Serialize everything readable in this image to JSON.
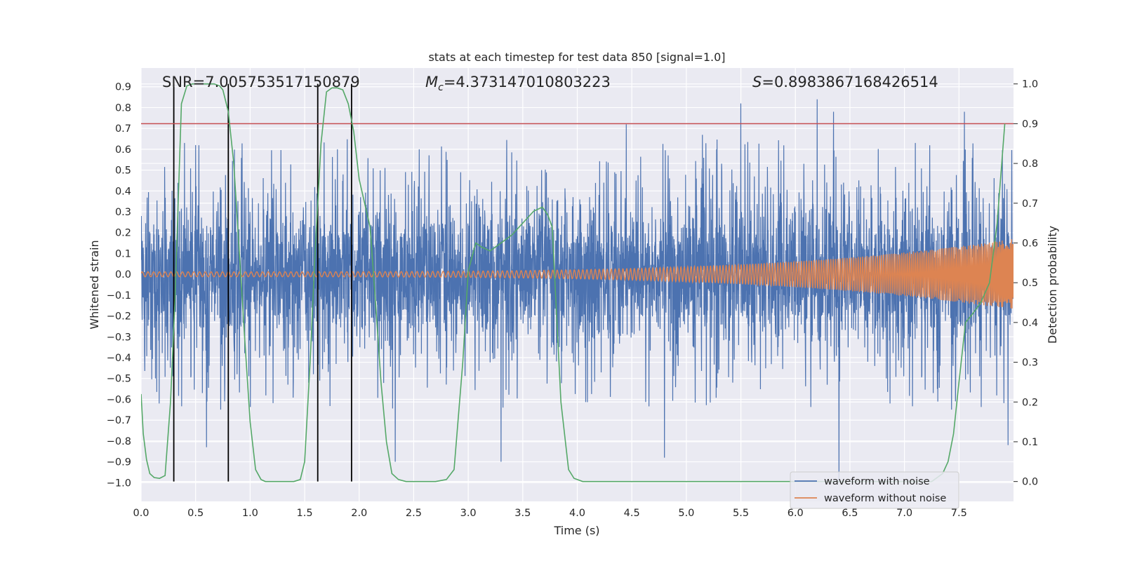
{
  "chart_data": {
    "type": "line",
    "title": "stats at each timestep for test data 850 [signal=1.0]",
    "xlabel": "Time (s)",
    "ylabel": "Whitened strain",
    "y2label": "Detection probability",
    "xlim": [
      0.0,
      8.0
    ],
    "ylim": [
      -1.09,
      0.99
    ],
    "y2lim": [
      -0.05,
      1.04
    ],
    "xticks": [
      0.0,
      0.5,
      1.0,
      1.5,
      2.0,
      2.5,
      3.0,
      3.5,
      4.0,
      4.5,
      5.0,
      5.5,
      6.0,
      6.5,
      7.0,
      7.5
    ],
    "xtick_labels": [
      "0.0",
      "0.5",
      "1.0",
      "1.5",
      "2.0",
      "2.5",
      "3.0",
      "3.5",
      "4.0",
      "4.5",
      "5.0",
      "5.5",
      "6.0",
      "6.5",
      "7.0",
      "7.5"
    ],
    "yticks": [
      0.9,
      0.8,
      0.7,
      0.6,
      0.5,
      0.4,
      0.3,
      0.2,
      0.1,
      0.0,
      -0.1,
      -0.2,
      -0.3,
      -0.4,
      -0.5,
      -0.6,
      -0.7,
      -0.8,
      -0.9,
      -1.0
    ],
    "ytick_labels": [
      "0.9",
      "0.8",
      "0.7",
      "0.6",
      "0.5",
      "0.4",
      "0.3",
      "0.2",
      "0.1",
      "0.0",
      "−0.1",
      "−0.2",
      "−0.3",
      "−0.4",
      "−0.5",
      "−0.6",
      "−0.7",
      "−0.8",
      "−0.9",
      "−1.0"
    ],
    "y2ticks": [
      1.0,
      0.9,
      0.8,
      0.7,
      0.6,
      0.5,
      0.4,
      0.3,
      0.2,
      0.1,
      0.0
    ],
    "y2tick_labels": [
      "1.0",
      "0.9",
      "0.8",
      "0.7",
      "0.6",
      "0.5",
      "0.4",
      "0.3",
      "0.2",
      "0.1",
      "0.0"
    ],
    "grid": true,
    "legend_position": "bottom-right",
    "annotations": {
      "snr": "SNR=7.005753517150879",
      "mc_symbol": "M",
      "mc_sub": "c",
      "mc_value": "=4.373147010803223",
      "s_symbol": "S",
      "s_value": "=0.8983867168426514"
    },
    "threshold": {
      "y2": 0.9,
      "color": "#c44e52"
    },
    "vlines_x": [
      0.3,
      0.8,
      1.62,
      1.93
    ],
    "series": [
      {
        "name": "waveform with noise",
        "color": "#4c72b0",
        "axis": "left",
        "style": "noise",
        "t_range": [
          0.0,
          8.0
        ],
        "envelope": 0.35,
        "min": -1.0,
        "max": 0.84,
        "peaks": [
          {
            "x": 0.5,
            "y": 0.62
          },
          {
            "x": 1.8,
            "y": 0.6
          },
          {
            "x": 2.55,
            "y": 0.6
          },
          {
            "x": 4.45,
            "y": 0.72
          },
          {
            "x": 5.5,
            "y": 0.82
          },
          {
            "x": 6.2,
            "y": 0.84
          },
          {
            "x": 6.35,
            "y": 0.78
          },
          {
            "x": 7.55,
            "y": 0.78
          },
          {
            "x": 7.95,
            "y": 0.7
          },
          {
            "x": 0.6,
            "y": -0.83
          },
          {
            "x": 2.33,
            "y": -0.9
          },
          {
            "x": 3.3,
            "y": -0.9
          },
          {
            "x": 4.8,
            "y": -0.88
          },
          {
            "x": 6.4,
            "y": -1.0
          },
          {
            "x": 7.95,
            "y": -0.82
          }
        ]
      },
      {
        "name": "waveform without noise",
        "color": "#dd8452",
        "axis": "left",
        "style": "chirp",
        "t_range": [
          0.0,
          8.0
        ],
        "amplitude_start": 0.012,
        "amplitude_end": 0.17
      },
      {
        "name": "",
        "color": "#55a868",
        "axis": "right",
        "x": [
          0.0,
          0.02,
          0.05,
          0.08,
          0.12,
          0.17,
          0.22,
          0.27,
          0.31,
          0.34,
          0.37,
          0.42,
          0.47,
          0.52,
          0.57,
          0.62,
          0.67,
          0.72,
          0.75,
          0.8,
          0.85,
          0.9,
          0.95,
          1.0,
          1.05,
          1.1,
          1.14,
          1.2,
          1.3,
          1.4,
          1.46,
          1.5,
          1.55,
          1.6,
          1.65,
          1.7,
          1.75,
          1.8,
          1.85,
          1.9,
          1.95,
          2.0,
          2.05,
          2.1,
          2.15,
          2.2,
          2.25,
          2.3,
          2.36,
          2.43,
          2.55,
          2.7,
          2.8,
          2.87,
          2.95,
          3.0,
          3.07,
          3.12,
          3.2,
          3.3,
          3.4,
          3.5,
          3.6,
          3.68,
          3.73,
          3.77,
          3.85,
          3.92,
          3.97,
          4.05,
          5.0,
          6.0,
          7.0,
          7.25,
          7.35,
          7.4,
          7.45,
          7.5,
          7.56,
          7.62,
          7.7,
          7.78,
          7.85,
          7.92
        ],
        "y": [
          0.22,
          0.12,
          0.055,
          0.02,
          0.01,
          0.008,
          0.015,
          0.2,
          0.45,
          0.7,
          0.95,
          0.995,
          1.0,
          1.0,
          1.0,
          1.0,
          1.0,
          0.995,
          0.985,
          0.93,
          0.8,
          0.58,
          0.36,
          0.15,
          0.03,
          0.005,
          0.0,
          0.0,
          0.0,
          0.0,
          0.005,
          0.05,
          0.3,
          0.6,
          0.85,
          0.98,
          0.99,
          0.99,
          0.985,
          0.95,
          0.88,
          0.76,
          0.7,
          0.64,
          0.45,
          0.25,
          0.1,
          0.02,
          0.005,
          0.0,
          0.0,
          0.0,
          0.005,
          0.03,
          0.3,
          0.53,
          0.6,
          0.59,
          0.58,
          0.6,
          0.62,
          0.65,
          0.68,
          0.69,
          0.67,
          0.64,
          0.2,
          0.03,
          0.008,
          0.0,
          0.0,
          0.0,
          0.0,
          0.0,
          0.02,
          0.05,
          0.12,
          0.25,
          0.4,
          0.42,
          0.45,
          0.5,
          0.65,
          0.9
        ]
      }
    ]
  }
}
